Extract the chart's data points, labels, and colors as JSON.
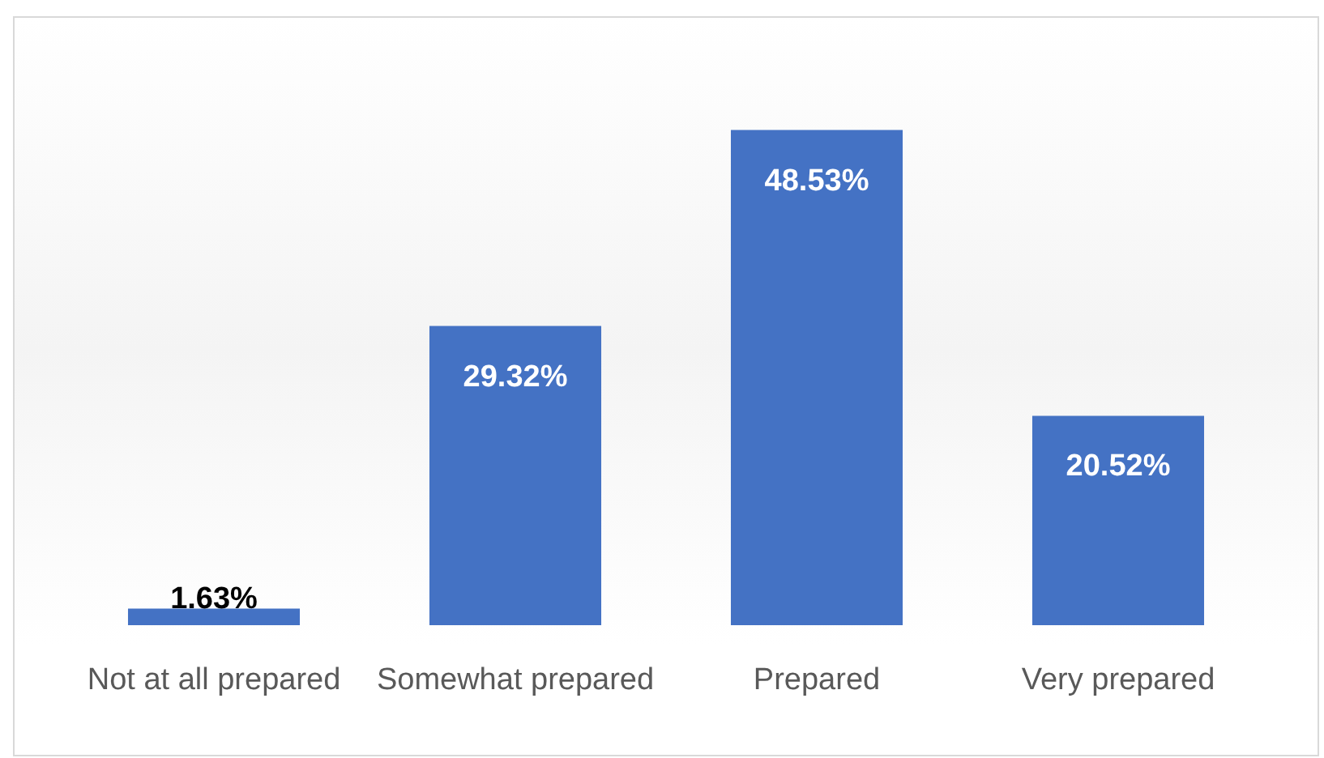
{
  "chart_data": {
    "type": "bar",
    "categories": [
      "Not at all prepared",
      "Somewhat prepared",
      "Prepared",
      "Very prepared"
    ],
    "values": [
      1.63,
      29.32,
      48.53,
      20.52
    ],
    "value_labels": [
      "1.63%",
      "29.32%",
      "48.53%",
      "20.52%"
    ],
    "color": "#4472c4"
  }
}
